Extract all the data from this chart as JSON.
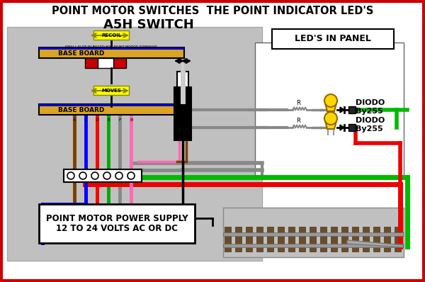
{
  "title": "POINT MOTOR SWITCHES  THE POINT INDICATOR LED'S",
  "bg_outer": "#ffffff",
  "bg_gray": "#c0c0c0",
  "border_color": "#cc0000",
  "switch_label": "A5H SWITCH",
  "led_panel_label": "LED'S IN PANEL",
  "diodo_label": "DIODO\nBy255",
  "baseboard_label": "BASE BOARD",
  "power_supply_text": "POINT MOTOR POWER SUPPLY\n12 TO 24 VOLTS AC OR DC",
  "small_text": "SMALL SLOT IN BOARD FOR POINT MOTOR SIDEWAYS",
  "connector_labels": [
    "A",
    "C",
    "D",
    "E",
    "F",
    "B"
  ],
  "gold_color": "#DAA520",
  "yellow_arrow": "#FFFF00",
  "blue_strip": "#0000CC",
  "wire_colors": [
    "#7B3F00",
    "#0000FF",
    "#FF0000",
    "#00AA00",
    "#888888",
    "#FF69B4"
  ],
  "green_wire": "#00BB00",
  "red_wire": "#EE0000",
  "gray_wire": "#888888",
  "yellow_led": "#FFD700",
  "white": "#ffffff",
  "black": "#000000",
  "panel_border": "#666666"
}
